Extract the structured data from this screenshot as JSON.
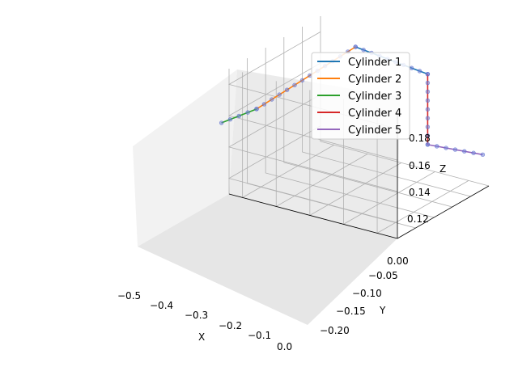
{
  "chart_data": {
    "type": "line",
    "projection": "3d",
    "grid": true,
    "legend_position": "top-right",
    "title": "",
    "xlabel": "X",
    "ylabel": "Y",
    "zlabel": "Z",
    "xlim": [
      -0.5,
      0.0
    ],
    "ylim": [
      -0.23,
      0.02
    ],
    "zlim": [
      0.11,
      0.19
    ],
    "x_ticks": [
      "−0.5",
      "−0.4",
      "−0.3",
      "−0.2",
      "−0.1",
      "0.0"
    ],
    "y_ticks": [
      "−0.20",
      "−0.15",
      "−0.10",
      "−0.05",
      "0.00"
    ],
    "z_ticks": [
      "0.12",
      "0.14",
      "0.16",
      "0.18"
    ],
    "series": [
      {
        "name": "Cylinder 1",
        "color": "#1f77b4",
        "points": [
          [
            -0.46,
            -0.15,
            0.175
          ],
          [
            -0.36,
            -0.07,
            0.19
          ]
        ]
      },
      {
        "name": "Cylinder 2",
        "color": "#ff7f0e",
        "points": [
          [
            -0.36,
            -0.07,
            0.19
          ],
          [
            -0.04,
            -0.01,
            0.165
          ]
        ]
      },
      {
        "name": "Cylinder 3",
        "color": "#2ca02c",
        "points": [
          [
            -0.04,
            -0.01,
            0.165
          ],
          [
            0.06,
            0.015,
            0.16
          ]
        ]
      },
      {
        "name": "Cylinder 4",
        "color": "#d62728",
        "points": [
          [
            -0.46,
            -0.15,
            0.175
          ],
          [
            -0.46,
            -0.15,
            0.13
          ]
        ]
      },
      {
        "name": "Cylinder 5",
        "color": "#9467bd",
        "points": [
          [
            -0.46,
            -0.15,
            0.13
          ],
          [
            -0.54,
            -0.21,
            0.125
          ]
        ]
      }
    ]
  }
}
